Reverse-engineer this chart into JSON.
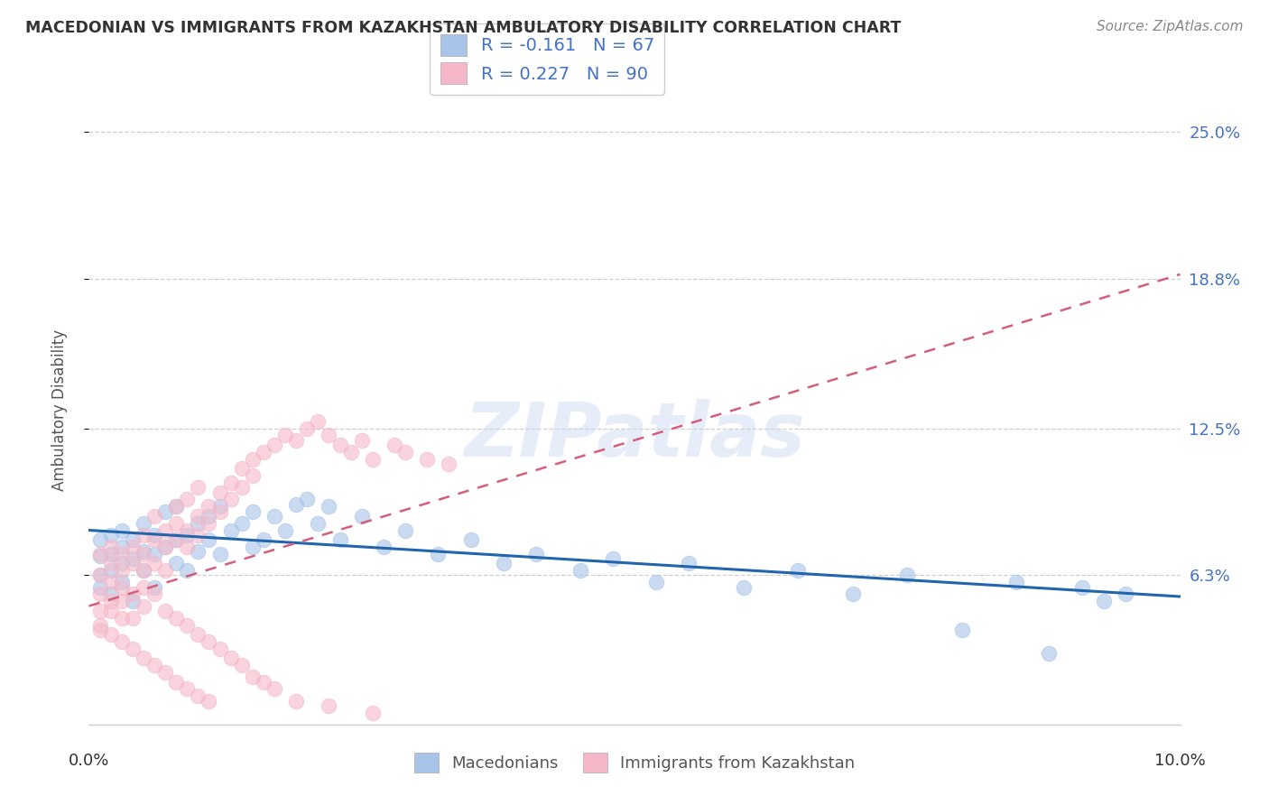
{
  "title": "MACEDONIAN VS IMMIGRANTS FROM KAZAKHSTAN AMBULATORY DISABILITY CORRELATION CHART",
  "source": "Source: ZipAtlas.com",
  "ylabel": "Ambulatory Disability",
  "ytick_labels": [
    "6.3%",
    "12.5%",
    "18.8%",
    "25.0%"
  ],
  "ytick_values": [
    0.063,
    0.125,
    0.188,
    0.25
  ],
  "xlim": [
    0.0,
    0.1
  ],
  "ylim": [
    0.0,
    0.265
  ],
  "macedonian_color": "#a8c4e8",
  "kazakh_color": "#f5b8c8",
  "macedonian_line_color": "#2166ac",
  "kazakh_line_color": "#d45f7a",
  "R_mac": -0.161,
  "N_mac": 67,
  "R_kaz": 0.227,
  "N_kaz": 90,
  "mac_line_x0": 0.0,
  "mac_line_y0": 0.082,
  "mac_line_x1": 0.1,
  "mac_line_y1": 0.054,
  "kaz_line_x0": 0.0,
  "kaz_line_y0": 0.05,
  "kaz_line_x1": 0.1,
  "kaz_line_y1": 0.19,
  "macedonian_scatter_x": [
    0.001,
    0.001,
    0.001,
    0.001,
    0.002,
    0.002,
    0.002,
    0.002,
    0.003,
    0.003,
    0.003,
    0.003,
    0.004,
    0.004,
    0.004,
    0.005,
    0.005,
    0.005,
    0.006,
    0.006,
    0.006,
    0.007,
    0.007,
    0.008,
    0.008,
    0.008,
    0.009,
    0.009,
    0.01,
    0.01,
    0.011,
    0.011,
    0.012,
    0.012,
    0.013,
    0.014,
    0.015,
    0.015,
    0.016,
    0.017,
    0.018,
    0.019,
    0.02,
    0.021,
    0.022,
    0.023,
    0.025,
    0.027,
    0.029,
    0.032,
    0.035,
    0.038,
    0.041,
    0.045,
    0.048,
    0.052,
    0.055,
    0.06,
    0.065,
    0.07,
    0.075,
    0.08,
    0.085,
    0.088,
    0.091,
    0.093,
    0.095
  ],
  "macedonian_scatter_y": [
    0.063,
    0.071,
    0.058,
    0.078,
    0.065,
    0.072,
    0.055,
    0.08,
    0.068,
    0.075,
    0.06,
    0.082,
    0.07,
    0.078,
    0.052,
    0.073,
    0.065,
    0.085,
    0.072,
    0.08,
    0.058,
    0.075,
    0.09,
    0.078,
    0.068,
    0.092,
    0.08,
    0.065,
    0.085,
    0.073,
    0.088,
    0.078,
    0.092,
    0.072,
    0.082,
    0.085,
    0.09,
    0.075,
    0.078,
    0.088,
    0.082,
    0.093,
    0.095,
    0.085,
    0.092,
    0.078,
    0.088,
    0.075,
    0.082,
    0.072,
    0.078,
    0.068,
    0.072,
    0.065,
    0.07,
    0.06,
    0.068,
    0.058,
    0.065,
    0.055,
    0.063,
    0.04,
    0.06,
    0.03,
    0.058,
    0.052,
    0.055
  ],
  "kazakh_scatter_x": [
    0.001,
    0.001,
    0.001,
    0.001,
    0.001,
    0.002,
    0.002,
    0.002,
    0.002,
    0.003,
    0.003,
    0.003,
    0.003,
    0.004,
    0.004,
    0.004,
    0.005,
    0.005,
    0.005,
    0.005,
    0.006,
    0.006,
    0.006,
    0.007,
    0.007,
    0.007,
    0.008,
    0.008,
    0.008,
    0.009,
    0.009,
    0.009,
    0.01,
    0.01,
    0.01,
    0.011,
    0.011,
    0.012,
    0.012,
    0.013,
    0.013,
    0.014,
    0.014,
    0.015,
    0.015,
    0.016,
    0.017,
    0.018,
    0.019,
    0.02,
    0.021,
    0.022,
    0.023,
    0.024,
    0.025,
    0.026,
    0.028,
    0.029,
    0.031,
    0.033,
    0.001,
    0.002,
    0.002,
    0.003,
    0.003,
    0.004,
    0.004,
    0.005,
    0.005,
    0.006,
    0.006,
    0.007,
    0.007,
    0.008,
    0.008,
    0.009,
    0.009,
    0.01,
    0.01,
    0.011,
    0.011,
    0.012,
    0.013,
    0.014,
    0.015,
    0.016,
    0.017,
    0.019,
    0.022,
    0.026
  ],
  "kazakh_scatter_y": [
    0.055,
    0.063,
    0.048,
    0.072,
    0.04,
    0.06,
    0.068,
    0.052,
    0.075,
    0.065,
    0.058,
    0.072,
    0.045,
    0.068,
    0.075,
    0.055,
    0.072,
    0.065,
    0.08,
    0.058,
    0.078,
    0.068,
    0.088,
    0.075,
    0.082,
    0.065,
    0.085,
    0.078,
    0.092,
    0.082,
    0.075,
    0.095,
    0.088,
    0.08,
    0.1,
    0.092,
    0.085,
    0.098,
    0.09,
    0.102,
    0.095,
    0.108,
    0.1,
    0.112,
    0.105,
    0.115,
    0.118,
    0.122,
    0.12,
    0.125,
    0.128,
    0.122,
    0.118,
    0.115,
    0.12,
    0.112,
    0.118,
    0.115,
    0.112,
    0.11,
    0.042,
    0.048,
    0.038,
    0.052,
    0.035,
    0.045,
    0.032,
    0.05,
    0.028,
    0.055,
    0.025,
    0.048,
    0.022,
    0.045,
    0.018,
    0.042,
    0.015,
    0.038,
    0.012,
    0.035,
    0.01,
    0.032,
    0.028,
    0.025,
    0.02,
    0.018,
    0.015,
    0.01,
    0.008,
    0.005
  ]
}
